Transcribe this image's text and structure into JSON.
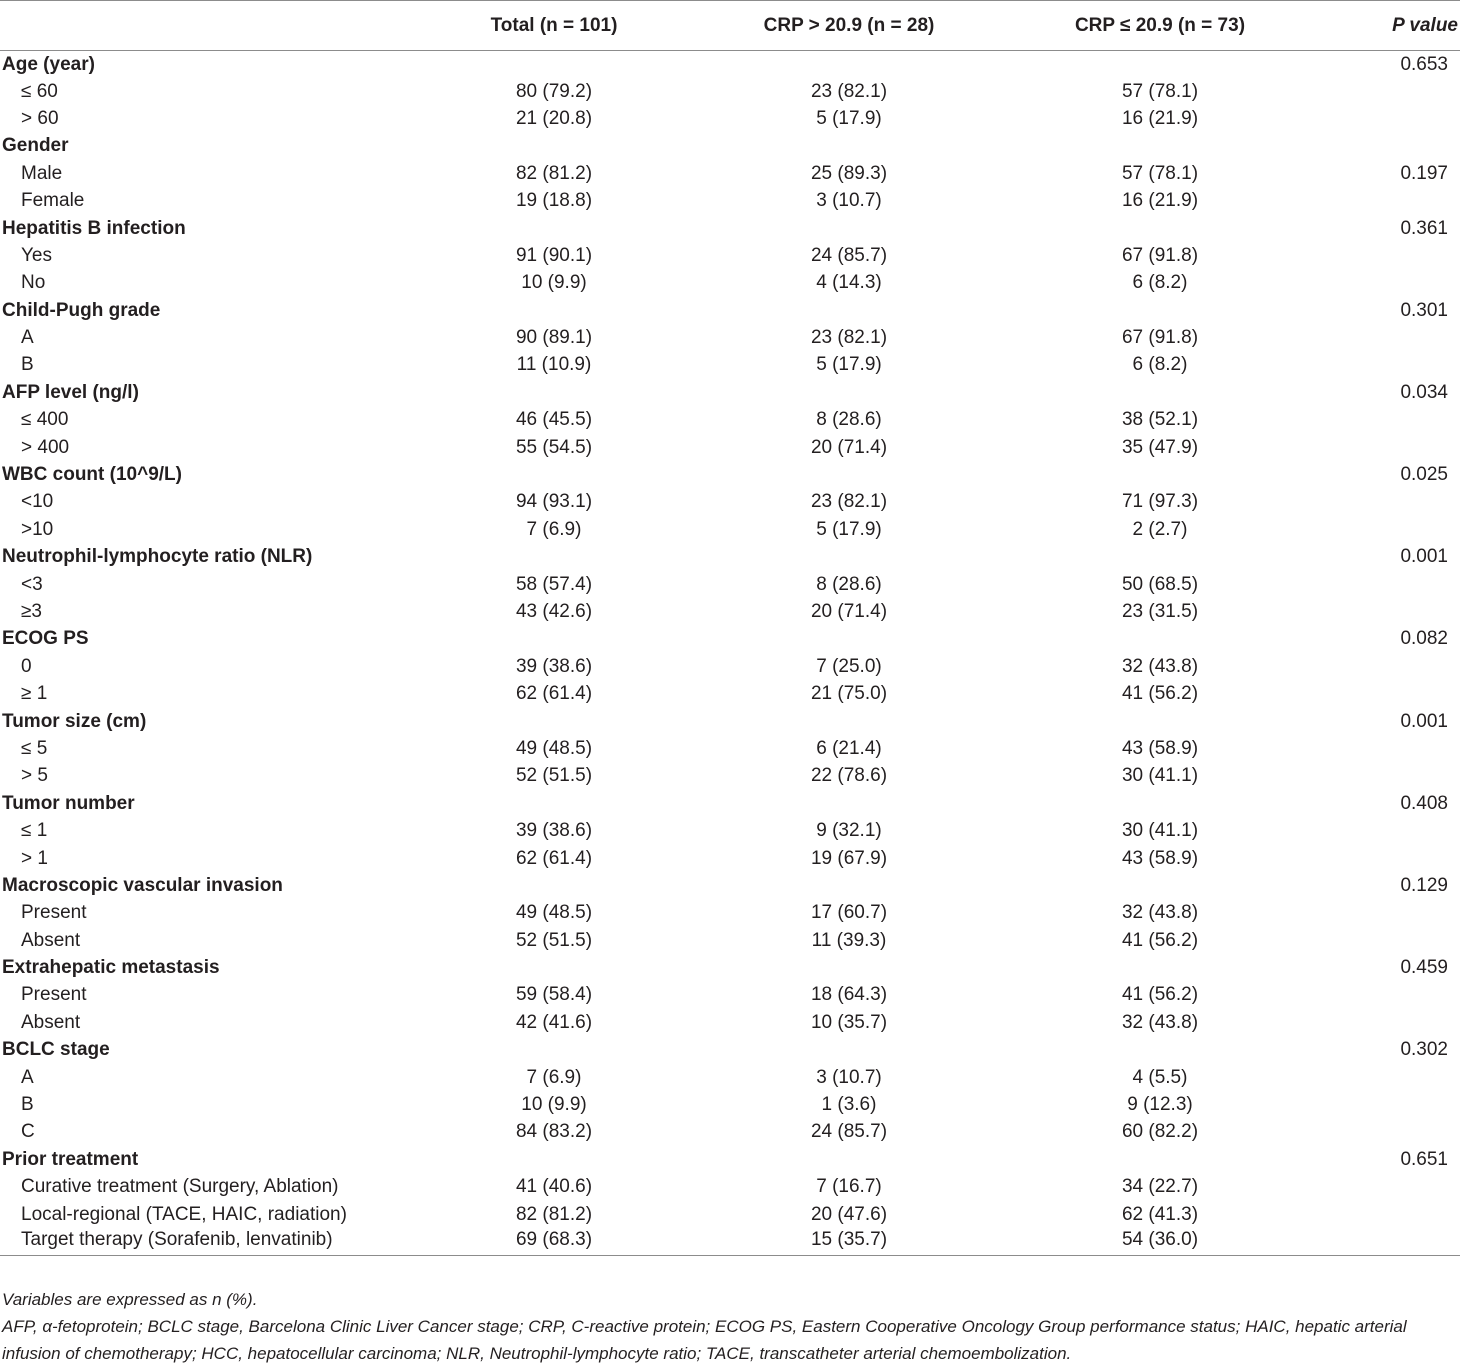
{
  "header": {
    "col_variable": "",
    "col_total": "Total (n = 101)",
    "col_high": "CRP > 20.9 (n = 28)",
    "col_low": "CRP ≤ 20.9 (n = 73)",
    "col_p": "P value"
  },
  "rows": [
    {
      "type": "group",
      "label": "Age (year)",
      "total": "",
      "high": "",
      "low": "",
      "p": "0.653"
    },
    {
      "type": "sub",
      "label": "≤ 60",
      "total": "80 (79.2)",
      "high": "23 (82.1)",
      "low": "57 (78.1)",
      "p": ""
    },
    {
      "type": "sub",
      "label": "> 60",
      "total": "21 (20.8)",
      "high": "5 (17.9)",
      "low": "16 (21.9)",
      "p": ""
    },
    {
      "type": "group",
      "label": "Gender",
      "total": "",
      "high": "",
      "low": "",
      "p": ""
    },
    {
      "type": "sub",
      "label": "Male",
      "total": "82 (81.2)",
      "high": "25 (89.3)",
      "low": "57 (78.1)",
      "p": "0.197"
    },
    {
      "type": "sub",
      "label": "Female",
      "total": "19 (18.8)",
      "high": "3 (10.7)",
      "low": "16 (21.9)",
      "p": ""
    },
    {
      "type": "group",
      "label": "Hepatitis B infection",
      "total": "",
      "high": "",
      "low": "",
      "p": "0.361"
    },
    {
      "type": "sub",
      "label": "Yes",
      "total": "91 (90.1)",
      "high": "24 (85.7)",
      "low": "67 (91.8)",
      "p": ""
    },
    {
      "type": "sub",
      "label": "No",
      "total": "10 (9.9)",
      "high": "4 (14.3)",
      "low": "6 (8.2)",
      "p": ""
    },
    {
      "type": "group",
      "label": "Child-Pugh grade",
      "total": "",
      "high": "",
      "low": "",
      "p": "0.301"
    },
    {
      "type": "sub",
      "label": "A",
      "total": "90 (89.1)",
      "high": "23 (82.1)",
      "low": "67 (91.8)",
      "p": ""
    },
    {
      "type": "sub",
      "label": "B",
      "total": "11 (10.9)",
      "high": "5 (17.9)",
      "low": "6 (8.2)",
      "p": ""
    },
    {
      "type": "group",
      "label": "AFP level (ng/l)",
      "total": "",
      "high": "",
      "low": "",
      "p": "0.034"
    },
    {
      "type": "sub",
      "label": "≤ 400",
      "total": "46 (45.5)",
      "high": "8 (28.6)",
      "low": "38 (52.1)",
      "p": ""
    },
    {
      "type": "sub",
      "label": "> 400",
      "total": "55 (54.5)",
      "high": "20 (71.4)",
      "low": "35 (47.9)",
      "p": ""
    },
    {
      "type": "group",
      "label": "WBC count (10^9/L)",
      "total": "",
      "high": "",
      "low": "",
      "p": "0.025"
    },
    {
      "type": "sub",
      "label": "<10",
      "total": "94 (93.1)",
      "high": "23 (82.1)",
      "low": "71 (97.3)",
      "p": ""
    },
    {
      "type": "sub",
      "label": ">10",
      "total": "7 (6.9)",
      "high": "5 (17.9)",
      "low": "2 (2.7)",
      "p": ""
    },
    {
      "type": "group",
      "label": "Neutrophil-lymphocyte ratio (NLR)",
      "total": "",
      "high": "",
      "low": "",
      "p": "0.001"
    },
    {
      "type": "sub",
      "label": "<3",
      "total": "58 (57.4)",
      "high": "8 (28.6)",
      "low": "50 (68.5)",
      "p": ""
    },
    {
      "type": "sub",
      "label": "≥3",
      "total": "43 (42.6)",
      "high": "20 (71.4)",
      "low": "23 (31.5)",
      "p": ""
    },
    {
      "type": "group",
      "label": "ECOG PS",
      "total": "",
      "high": "",
      "low": "",
      "p": "0.082"
    },
    {
      "type": "sub",
      "label": "0",
      "total": "39 (38.6)",
      "high": "7 (25.0)",
      "low": "32 (43.8)",
      "p": ""
    },
    {
      "type": "sub",
      "label": "≥ 1",
      "total": "62 (61.4)",
      "high": "21 (75.0)",
      "low": "41 (56.2)",
      "p": ""
    },
    {
      "type": "group",
      "label": "Tumor size (cm)",
      "total": "",
      "high": "",
      "low": "",
      "p": "0.001"
    },
    {
      "type": "sub",
      "label": "≤ 5",
      "total": "49 (48.5)",
      "high": "6 (21.4)",
      "low": "43 (58.9)",
      "p": ""
    },
    {
      "type": "sub",
      "label": "> 5",
      "total": "52 (51.5)",
      "high": "22 (78.6)",
      "low": "30 (41.1)",
      "p": ""
    },
    {
      "type": "group",
      "label": "Tumor number",
      "total": "",
      "high": "",
      "low": "",
      "p": "0.408"
    },
    {
      "type": "sub",
      "label": "≤ 1",
      "total": "39 (38.6)",
      "high": "9 (32.1)",
      "low": "30 (41.1)",
      "p": ""
    },
    {
      "type": "sub",
      "label": "> 1",
      "total": "62 (61.4)",
      "high": "19 (67.9)",
      "low": "43 (58.9)",
      "p": ""
    },
    {
      "type": "group",
      "label": "Macroscopic vascular invasion",
      "total": "",
      "high": "",
      "low": "",
      "p": "0.129"
    },
    {
      "type": "sub",
      "label": "Present",
      "total": "49 (48.5)",
      "high": "17 (60.7)",
      "low": "32 (43.8)",
      "p": ""
    },
    {
      "type": "sub",
      "label": "Absent",
      "total": "52 (51.5)",
      "high": "11 (39.3)",
      "low": "41 (56.2)",
      "p": ""
    },
    {
      "type": "group",
      "label": "Extrahepatic metastasis",
      "total": "",
      "high": "",
      "low": "",
      "p": "0.459"
    },
    {
      "type": "sub",
      "label": "Present",
      "total": "59 (58.4)",
      "high": "18 (64.3)",
      "low": "41 (56.2)",
      "p": ""
    },
    {
      "type": "sub",
      "label": "Absent",
      "total": "42 (41.6)",
      "high": "10 (35.7)",
      "low": "32 (43.8)",
      "p": ""
    },
    {
      "type": "group",
      "label": "BCLC stage",
      "total": "",
      "high": "",
      "low": "",
      "p": "0.302"
    },
    {
      "type": "sub",
      "label": "A",
      "total": "7 (6.9)",
      "high": "3 (10.7)",
      "low": "4 (5.5)",
      "p": ""
    },
    {
      "type": "sub",
      "label": "B",
      "total": "10 (9.9)",
      "high": "1 (3.6)",
      "low": "9 (12.3)",
      "p": ""
    },
    {
      "type": "sub",
      "label": "C",
      "total": "84 (83.2)",
      "high": "24 (85.7)",
      "low": "60 (82.2)",
      "p": ""
    },
    {
      "type": "group",
      "label": "Prior treatment",
      "total": "",
      "high": "",
      "low": "",
      "p": "0.651"
    },
    {
      "type": "sub",
      "label": "Curative treatment (Surgery, Ablation)",
      "total": "41 (40.6)",
      "high": "7 (16.7)",
      "low": "34 (22.7)",
      "p": ""
    },
    {
      "type": "sub",
      "label": "Local-regional (TACE, HAIC, radiation)",
      "total": "82 (81.2)",
      "high": "20 (47.6)",
      "low": "62 (41.3)",
      "p": ""
    },
    {
      "type": "sub",
      "label": "Target therapy (Sorafenib, lenvatinib)",
      "total": "69 (68.3)",
      "high": "15 (35.7)",
      "low": "54 (36.0)",
      "p": ""
    }
  ],
  "footnotes": {
    "line1": "Variables are expressed as n (%).",
    "line2": "AFP, α-fetoprotein; BCLC stage, Barcelona Clinic Liver Cancer stage; CRP, C-reactive protein; ECOG PS, Eastern Cooperative Oncology Group performance status; HAIC, hepatic arterial infusion of chemotherapy; HCC, hepatocellular carcinoma; NLR, Neutrophil-lymphocyte ratio; TACE, transcatheter arterial chemoembolization."
  }
}
